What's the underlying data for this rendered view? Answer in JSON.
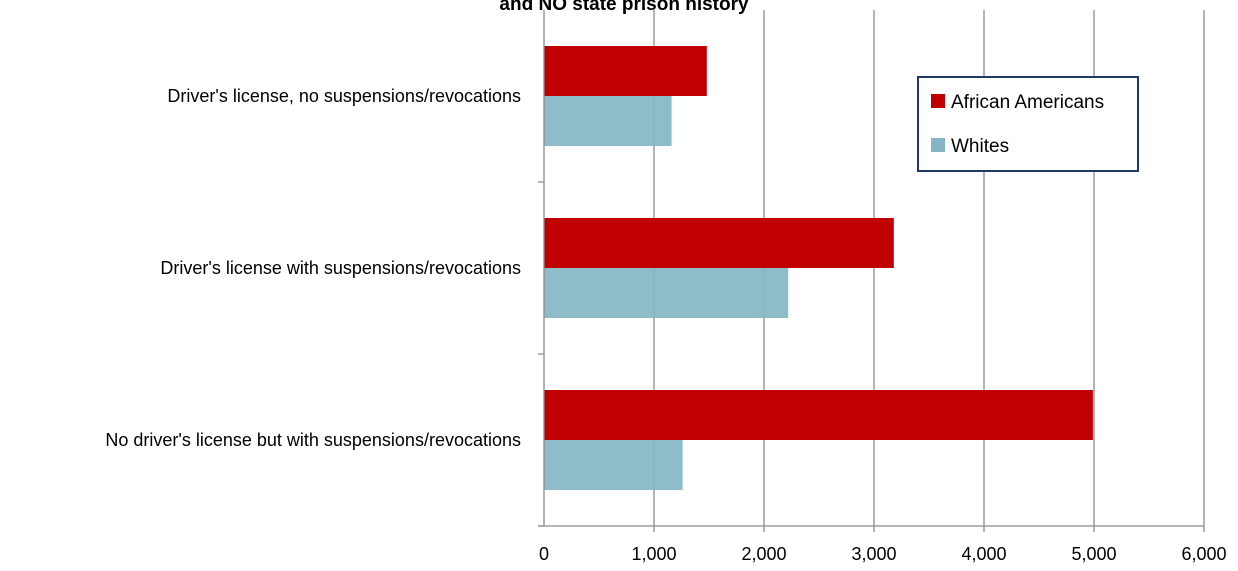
{
  "chart_data": {
    "type": "bar",
    "orientation": "horizontal",
    "title": "and NO state prison history",
    "xlim": [
      0,
      6000
    ],
    "xticks": [
      0,
      1000,
      2000,
      3000,
      4000,
      5000,
      6000
    ],
    "xtick_labels": [
      "0",
      "1,000",
      "2,000",
      "3,000",
      "4,000",
      "5,000",
      "6,000"
    ],
    "grid": "vertical",
    "legend_position": "top-right",
    "categories": [
      "Driver's license, no suspensions/revocations",
      "Driver's license with suspensions/revocations",
      "No driver's license but with suspensions/revocations"
    ],
    "series": [
      {
        "name": "African Americans",
        "color": "#c00000",
        "values": [
          1480,
          3180,
          4990
        ]
      },
      {
        "name": "Whites",
        "color": "#86b6c4",
        "values": [
          1160,
          2220,
          1260
        ]
      }
    ]
  }
}
